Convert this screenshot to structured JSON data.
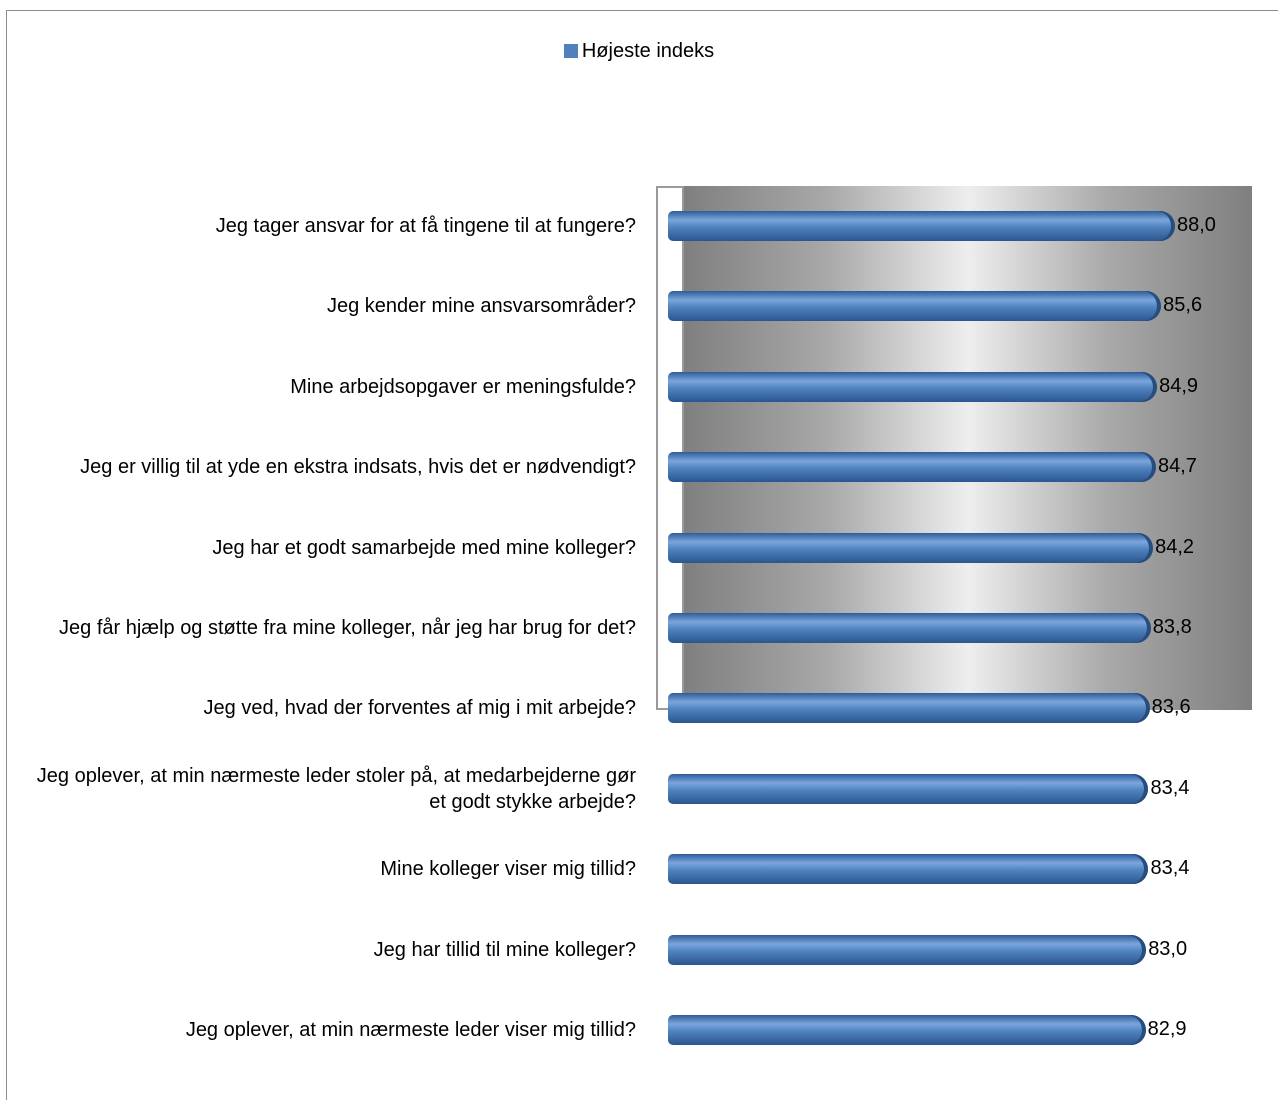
{
  "chart_data": {
    "type": "bar",
    "orientation": "horizontal",
    "title": "",
    "legend": "top",
    "series": [
      {
        "name": "Højeste indeks",
        "color": "#4f81bd",
        "values": [
          88.0,
          85.6,
          84.9,
          84.7,
          84.2,
          83.8,
          83.6,
          83.4,
          83.4,
          83.0,
          82.9
        ],
        "labels": [
          "88,0",
          "85,6",
          "84,9",
          "84,7",
          "84,2",
          "83,8",
          "83,6",
          "83,4",
          "83,4",
          "83,0",
          "82,9"
        ]
      }
    ],
    "categories": [
      "Jeg tager ansvar for at få tingene til at fungere?",
      "Jeg kender mine ansvarsområder?",
      "Mine arbejdsopgaver er meningsfulde?",
      "Jeg er villig til at yde en ekstra indsats, hvis det er nødvendigt?",
      "Jeg har et godt samarbejde med mine kolleger?",
      "Jeg får hjælp og støtte fra mine kolleger, når jeg har brug for det?",
      "Jeg ved, hvad der forventes af mig i mit arbejde?",
      "Jeg oplever, at min nærmeste leder stoler på, at medarbejderne gør et godt stykke arbejde?",
      "Mine kolleger viser mig tillid?",
      "Jeg har tillid til mine kolleger?",
      "Jeg oplever, at min nærmeste leder viser mig tillid?"
    ],
    "xlabel": "",
    "ylabel": ""
  }
}
